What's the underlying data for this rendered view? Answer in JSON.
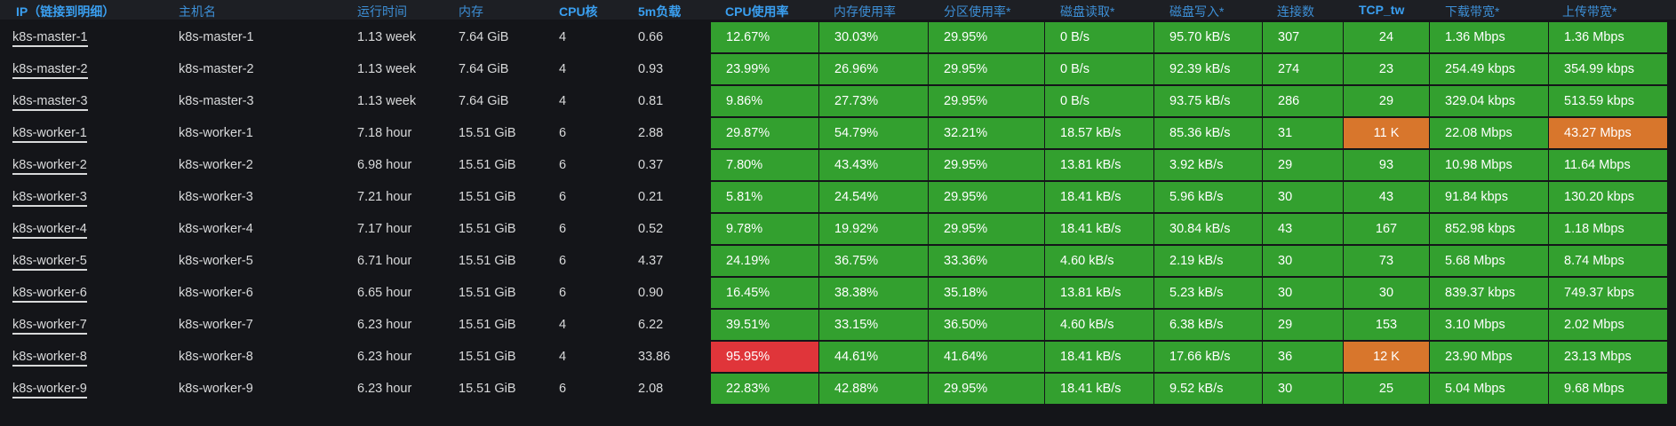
{
  "columns": [
    "IP（链接到明细）",
    "主机名",
    "运行时间",
    "内存",
    "CPU核",
    "5m负载",
    "CPU使用率",
    "内存使用率",
    "分区使用率*",
    "磁盘读取*",
    "磁盘写入*",
    "连接数",
    "TCP_tw",
    "下载带宽*",
    "上传带宽*"
  ],
  "colors": {
    "ok": "#33a02f",
    "critical": "#e0353a",
    "warning": "#d8762c",
    "header_text": "#3d8fd6"
  },
  "rows": [
    {
      "ip": "k8s-master-1",
      "host": "k8s-master-1",
      "uptime": "1.13 week",
      "mem": "7.64 GiB",
      "cpu": "4",
      "load": "0.66",
      "cpu_pct": "12.67%",
      "mem_pct": "30.03%",
      "part_pct": "29.95%",
      "disk_read": "0 B/s",
      "disk_write": "95.70 kB/s",
      "conn": "307",
      "tcp_tw": "24",
      "down": "1.36 Mbps",
      "up": "1.36 Mbps",
      "status": {
        "cpu_pct": "ok",
        "tcp_tw": "ok",
        "up": "ok"
      }
    },
    {
      "ip": "k8s-master-2",
      "host": "k8s-master-2",
      "uptime": "1.13 week",
      "mem": "7.64 GiB",
      "cpu": "4",
      "load": "0.93",
      "cpu_pct": "23.99%",
      "mem_pct": "26.96%",
      "part_pct": "29.95%",
      "disk_read": "0 B/s",
      "disk_write": "92.39 kB/s",
      "conn": "274",
      "tcp_tw": "23",
      "down": "254.49 kbps",
      "up": "354.99 kbps",
      "status": {
        "cpu_pct": "ok",
        "tcp_tw": "ok",
        "up": "ok"
      }
    },
    {
      "ip": "k8s-master-3",
      "host": "k8s-master-3",
      "uptime": "1.13 week",
      "mem": "7.64 GiB",
      "cpu": "4",
      "load": "0.81",
      "cpu_pct": "9.86%",
      "mem_pct": "27.73%",
      "part_pct": "29.95%",
      "disk_read": "0 B/s",
      "disk_write": "93.75 kB/s",
      "conn": "286",
      "tcp_tw": "29",
      "down": "329.04 kbps",
      "up": "513.59 kbps",
      "status": {
        "cpu_pct": "ok",
        "tcp_tw": "ok",
        "up": "ok"
      }
    },
    {
      "ip": "k8s-worker-1",
      "host": "k8s-worker-1",
      "uptime": "7.18 hour",
      "mem": "15.51 GiB",
      "cpu": "6",
      "load": "2.88",
      "cpu_pct": "29.87%",
      "mem_pct": "54.79%",
      "part_pct": "32.21%",
      "disk_read": "18.57 kB/s",
      "disk_write": "85.36 kB/s",
      "conn": "31",
      "tcp_tw": "11 K",
      "down": "22.08 Mbps",
      "up": "43.27 Mbps",
      "status": {
        "cpu_pct": "ok",
        "tcp_tw": "warning",
        "up": "warning"
      }
    },
    {
      "ip": "k8s-worker-2",
      "host": "k8s-worker-2",
      "uptime": "6.98 hour",
      "mem": "15.51 GiB",
      "cpu": "6",
      "load": "0.37",
      "cpu_pct": "7.80%",
      "mem_pct": "43.43%",
      "part_pct": "29.95%",
      "disk_read": "13.81 kB/s",
      "disk_write": "3.92 kB/s",
      "conn": "29",
      "tcp_tw": "93",
      "down": "10.98 Mbps",
      "up": "11.64 Mbps",
      "status": {
        "cpu_pct": "ok",
        "tcp_tw": "ok",
        "up": "ok"
      }
    },
    {
      "ip": "k8s-worker-3",
      "host": "k8s-worker-3",
      "uptime": "7.21 hour",
      "mem": "15.51 GiB",
      "cpu": "6",
      "load": "0.21",
      "cpu_pct": "5.81%",
      "mem_pct": "24.54%",
      "part_pct": "29.95%",
      "disk_read": "18.41 kB/s",
      "disk_write": "5.96 kB/s",
      "conn": "30",
      "tcp_tw": "43",
      "down": "91.84 kbps",
      "up": "130.20 kbps",
      "status": {
        "cpu_pct": "ok",
        "tcp_tw": "ok",
        "up": "ok"
      }
    },
    {
      "ip": "k8s-worker-4",
      "host": "k8s-worker-4",
      "uptime": "7.17 hour",
      "mem": "15.51 GiB",
      "cpu": "6",
      "load": "0.52",
      "cpu_pct": "9.78%",
      "mem_pct": "19.92%",
      "part_pct": "29.95%",
      "disk_read": "18.41 kB/s",
      "disk_write": "30.84 kB/s",
      "conn": "43",
      "tcp_tw": "167",
      "down": "852.98 kbps",
      "up": "1.18 Mbps",
      "status": {
        "cpu_pct": "ok",
        "tcp_tw": "ok",
        "up": "ok"
      }
    },
    {
      "ip": "k8s-worker-5",
      "host": "k8s-worker-5",
      "uptime": "6.71 hour",
      "mem": "15.51 GiB",
      "cpu": "6",
      "load": "4.37",
      "cpu_pct": "24.19%",
      "mem_pct": "36.75%",
      "part_pct": "33.36%",
      "disk_read": "4.60 kB/s",
      "disk_write": "2.19 kB/s",
      "conn": "30",
      "tcp_tw": "73",
      "down": "5.68 Mbps",
      "up": "8.74 Mbps",
      "status": {
        "cpu_pct": "ok",
        "tcp_tw": "ok",
        "up": "ok"
      }
    },
    {
      "ip": "k8s-worker-6",
      "host": "k8s-worker-6",
      "uptime": "6.65 hour",
      "mem": "15.51 GiB",
      "cpu": "6",
      "load": "0.90",
      "cpu_pct": "16.45%",
      "mem_pct": "38.38%",
      "part_pct": "35.18%",
      "disk_read": "13.81 kB/s",
      "disk_write": "5.23 kB/s",
      "conn": "30",
      "tcp_tw": "30",
      "down": "839.37 kbps",
      "up": "749.37 kbps",
      "status": {
        "cpu_pct": "ok",
        "tcp_tw": "ok",
        "up": "ok"
      }
    },
    {
      "ip": "k8s-worker-7",
      "host": "k8s-worker-7",
      "uptime": "6.23 hour",
      "mem": "15.51 GiB",
      "cpu": "4",
      "load": "6.22",
      "cpu_pct": "39.51%",
      "mem_pct": "33.15%",
      "part_pct": "36.50%",
      "disk_read": "4.60 kB/s",
      "disk_write": "6.38 kB/s",
      "conn": "29",
      "tcp_tw": "153",
      "down": "3.10 Mbps",
      "up": "2.02 Mbps",
      "status": {
        "cpu_pct": "ok",
        "tcp_tw": "ok",
        "up": "ok"
      }
    },
    {
      "ip": "k8s-worker-8",
      "host": "k8s-worker-8",
      "uptime": "6.23 hour",
      "mem": "15.51 GiB",
      "cpu": "4",
      "load": "33.86",
      "cpu_pct": "95.95%",
      "mem_pct": "44.61%",
      "part_pct": "41.64%",
      "disk_read": "18.41 kB/s",
      "disk_write": "17.66 kB/s",
      "conn": "36",
      "tcp_tw": "12 K",
      "down": "23.90 Mbps",
      "up": "23.13 Mbps",
      "status": {
        "cpu_pct": "critical",
        "tcp_tw": "warning",
        "up": "ok"
      }
    },
    {
      "ip": "k8s-worker-9",
      "host": "k8s-worker-9",
      "uptime": "6.23 hour",
      "mem": "15.51 GiB",
      "cpu": "6",
      "load": "2.08",
      "cpu_pct": "22.83%",
      "mem_pct": "42.88%",
      "part_pct": "29.95%",
      "disk_read": "18.41 kB/s",
      "disk_write": "9.52 kB/s",
      "conn": "30",
      "tcp_tw": "25",
      "down": "5.04 Mbps",
      "up": "9.68 Mbps",
      "status": {
        "cpu_pct": "ok",
        "tcp_tw": "ok",
        "up": "ok"
      }
    }
  ]
}
